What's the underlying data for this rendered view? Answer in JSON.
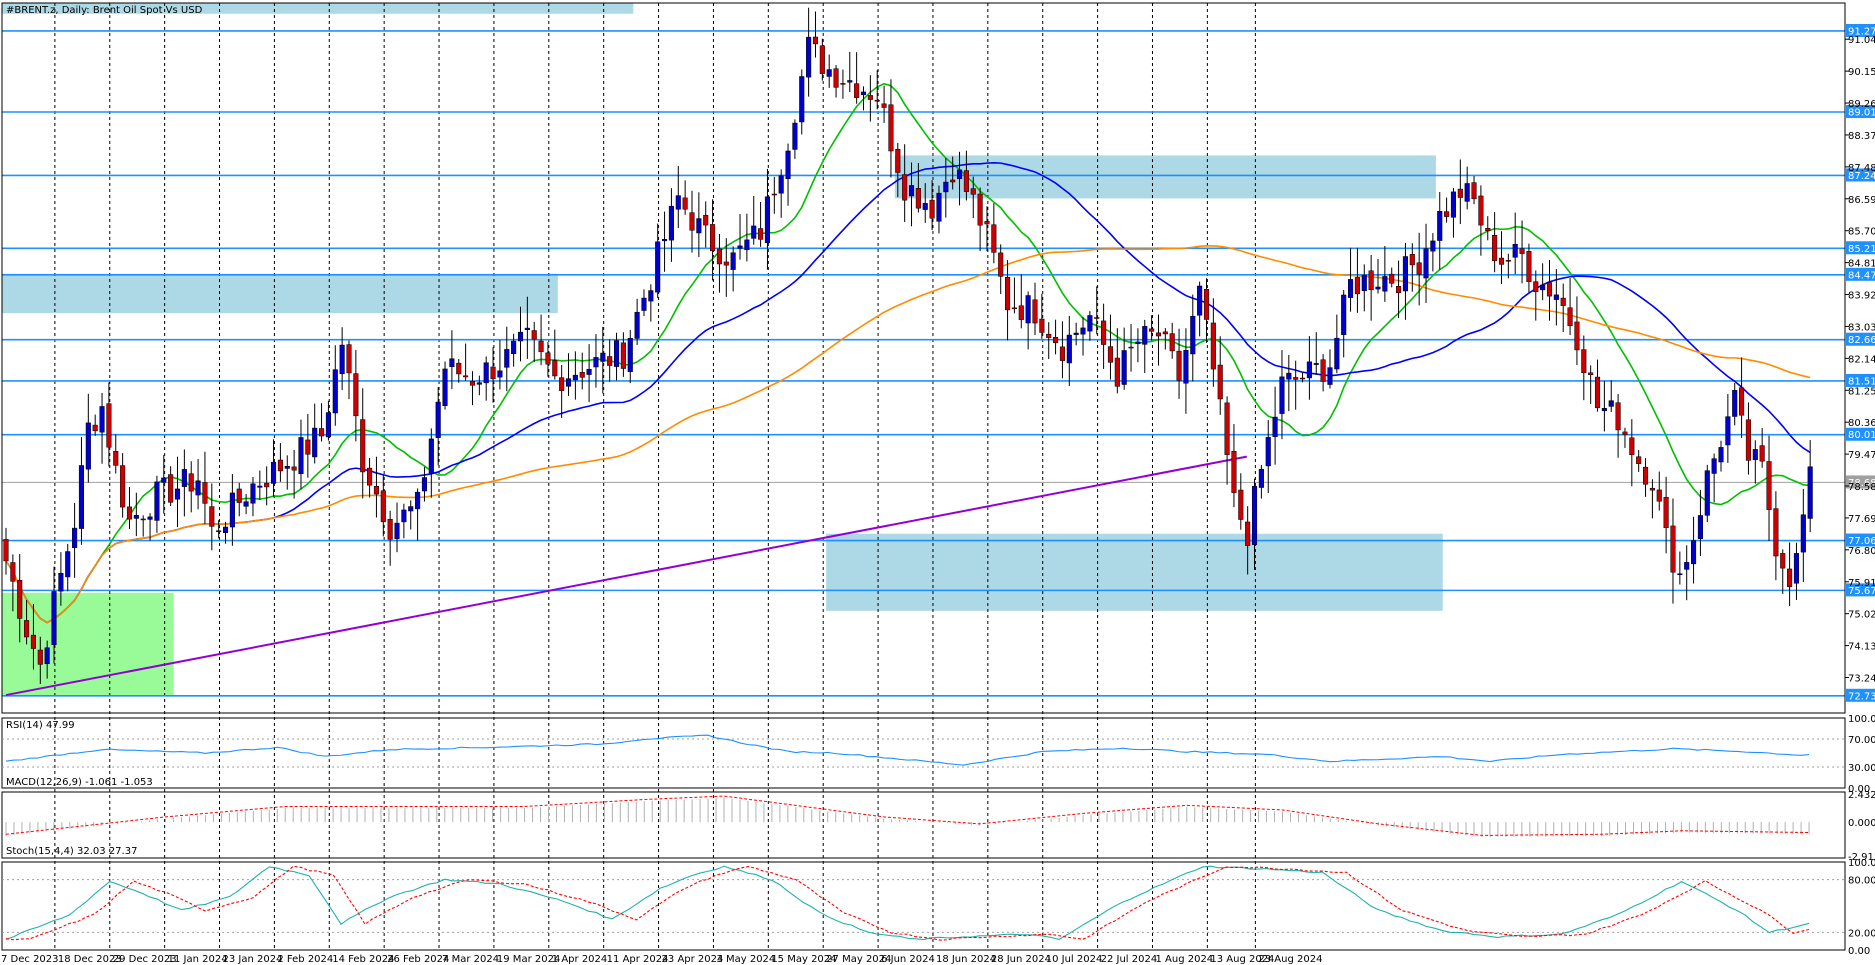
{
  "chart_data": {
    "type": "candlestick",
    "title": "#BRENT.z, Daily:  Brent Oil Spot Vs USD",
    "price_axis": {
      "ylim": [
        72.25,
        92.05
      ],
      "ticks": [
        "91.04",
        "90.15",
        "89.26",
        "88.37",
        "87.48",
        "86.59",
        "85.70",
        "84.81",
        "83.92",
        "83.03",
        "82.14",
        "81.25",
        "80.36",
        "79.47",
        "78.58",
        "77.69",
        "76.80",
        "75.91",
        "75.02",
        "74.13",
        "73.24"
      ]
    },
    "level_lines": [
      {
        "value": "91.27",
        "v": 91.27
      },
      {
        "value": "89.01",
        "v": 89.01
      },
      {
        "value": "87.24",
        "v": 87.24
      },
      {
        "value": "85.21",
        "v": 85.21
      },
      {
        "value": "84.47",
        "v": 84.47
      },
      {
        "value": "82.66",
        "v": 82.66
      },
      {
        "value": "81.51",
        "v": 81.51
      },
      {
        "value": "80.01",
        "v": 80.01
      },
      {
        "value": "77.06",
        "v": 77.06
      },
      {
        "value": "75.67",
        "v": 75.67
      },
      {
        "value": "72.73",
        "v": 72.73
      }
    ],
    "current_price": {
      "value": "78.68",
      "v": 78.68
    },
    "date_labels": [
      "7 Dec 2023",
      "18 Dec 2023",
      "29 Dec 2023",
      "11 Jan 2024",
      "23 Jan 2024",
      "2 Feb 2024",
      "14 Feb 2024",
      "26 Feb 2024",
      "7 Mar 2024",
      "19 Mar 2024",
      "1 Apr 2024",
      "11 Apr 2024",
      "23 Apr 2024",
      "3 May 2024",
      "15 May 2024",
      "27 May 2024",
      "6 Jun 2024",
      "18 Jun 2024",
      "28 Jun 2024",
      "10 Jul 2024",
      "22 Jul 2024",
      "1 Aug 2024",
      "13 Aug 2024",
      "23 Aug 2024"
    ],
    "zones": [
      {
        "name": "supply-zone-top",
        "from_bar": 0,
        "to_bar": 91,
        "price_from": 91.75,
        "price_to": 92.05,
        "color": "#add8e6"
      },
      {
        "name": "supply-zone-june",
        "from_bar": 130,
        "to_bar": 208,
        "price_from": 86.6,
        "price_to": 87.8,
        "color": "#add8e6"
      },
      {
        "name": "zone-march",
        "from_bar": 0,
        "to_bar": 80,
        "price_from": 83.4,
        "price_to": 84.5,
        "color": "#add8e6"
      },
      {
        "name": "demand-zone-aug",
        "from_bar": 120,
        "to_bar": 209,
        "price_from": 75.1,
        "price_to": 77.25,
        "color": "#add8e6"
      },
      {
        "name": "demand-zone-dec",
        "from_bar": 0,
        "to_bar": 24,
        "price_from": 72.75,
        "price_to": 75.6,
        "color": "#98fb98"
      }
    ],
    "trendline": {
      "from": {
        "bar": 0,
        "price": 72.75
      },
      "to": {
        "bar": 180,
        "price": 79.4
      },
      "color": "#9400d3"
    },
    "rsi": {
      "label": "RSI(14) 47.99",
      "ticks": [
        "100.00",
        "70.00",
        "30.00",
        "0.00"
      ],
      "levels": [
        70,
        30
      ],
      "anchors": [
        [
          0,
          38
        ],
        [
          12,
          55
        ],
        [
          25,
          50
        ],
        [
          34,
          58
        ],
        [
          40,
          45
        ],
        [
          48,
          55
        ],
        [
          60,
          58
        ],
        [
          75,
          63
        ],
        [
          80,
          70
        ],
        [
          88,
          75
        ],
        [
          92,
          65
        ],
        [
          98,
          52
        ],
        [
          104,
          50
        ],
        [
          120,
          33
        ],
        [
          130,
          52
        ],
        [
          140,
          57
        ],
        [
          148,
          52
        ],
        [
          158,
          48
        ],
        [
          166,
          38
        ],
        [
          180,
          45
        ],
        [
          186,
          38
        ],
        [
          195,
          48
        ],
        [
          209,
          56
        ],
        [
          218,
          52
        ],
        [
          225,
          47
        ],
        [
          226,
          48
        ]
      ]
    },
    "macd": {
      "label": "MACD(12,26,9) -1.061 -1.053",
      "ticks": [
        "2.432",
        "0.000",
        "-2.915"
      ],
      "anchors": [
        [
          0,
          -1.2
        ],
        [
          8,
          -0.6
        ],
        [
          20,
          0.3
        ],
        [
          35,
          1.2
        ],
        [
          50,
          1.2
        ],
        [
          65,
          1.2
        ],
        [
          80,
          1.8
        ],
        [
          90,
          2.1
        ],
        [
          100,
          1.2
        ],
        [
          110,
          0.3
        ],
        [
          122,
          -0.3
        ],
        [
          135,
          0.6
        ],
        [
          148,
          1.3
        ],
        [
          160,
          0.9
        ],
        [
          172,
          -0.3
        ],
        [
          185,
          -1.3
        ],
        [
          200,
          -1.2
        ],
        [
          210,
          -0.9
        ],
        [
          226,
          -1.05
        ]
      ]
    },
    "stoch": {
      "label": "Stoch(15,4,4) 32.03 27.37",
      "ticks": [
        "100.00",
        "80.00",
        "20.00",
        "0.00"
      ],
      "levels": [
        80,
        20
      ],
      "anchors": [
        [
          0,
          12
        ],
        [
          8,
          40
        ],
        [
          13,
          78
        ],
        [
          17,
          65
        ],
        [
          22,
          45
        ],
        [
          28,
          60
        ],
        [
          33,
          95
        ],
        [
          38,
          85
        ],
        [
          42,
          30
        ],
        [
          48,
          60
        ],
        [
          55,
          80
        ],
        [
          62,
          75
        ],
        [
          70,
          55
        ],
        [
          76,
          35
        ],
        [
          82,
          70
        ],
        [
          86,
          85
        ],
        [
          90,
          95
        ],
        [
          96,
          80
        ],
        [
          102,
          42
        ],
        [
          108,
          20
        ],
        [
          114,
          12
        ],
        [
          120,
          15
        ],
        [
          128,
          18
        ],
        [
          132,
          12
        ],
        [
          140,
          55
        ],
        [
          150,
          95
        ],
        [
          158,
          92
        ],
        [
          165,
          88
        ],
        [
          172,
          45
        ],
        [
          180,
          22
        ],
        [
          187,
          15
        ],
        [
          195,
          18
        ],
        [
          202,
          40
        ],
        [
          210,
          78
        ],
        [
          217,
          45
        ],
        [
          221,
          20
        ],
        [
          226,
          30
        ]
      ]
    },
    "indicator_colors": {
      "ma_fast": "#00c000",
      "ma_mid": "#0000ff",
      "ma_slow": "#ff8c00",
      "bull": "#0000cd",
      "bear": "#cc0000",
      "level": "#1e90ff",
      "rsi": "#1e90ff",
      "macd_signal": "#ff0000",
      "macd_hist": "#b0b0b0",
      "stoch_main": "#20b2aa",
      "stoch_signal": "#ff0000"
    },
    "price_anchors": [
      [
        0,
        76.5
      ],
      [
        3,
        74.6
      ],
      [
        5,
        73.6
      ],
      [
        7,
        75.3
      ],
      [
        10,
        77.6
      ],
      [
        12,
        80.2
      ],
      [
        14,
        80.8
      ],
      [
        16,
        79.0
      ],
      [
        18,
        77.6
      ],
      [
        22,
        78.3
      ],
      [
        28,
        78.8
      ],
      [
        30,
        77.3
      ],
      [
        36,
        78.6
      ],
      [
        42,
        79.4
      ],
      [
        46,
        80.0
      ],
      [
        49,
        82.6
      ],
      [
        52,
        79.3
      ],
      [
        56,
        77.5
      ],
      [
        60,
        78.0
      ],
      [
        64,
        81.9
      ],
      [
        68,
        81.6
      ],
      [
        72,
        82.0
      ],
      [
        76,
        82.6
      ],
      [
        80,
        81.6
      ],
      [
        86,
        82.0
      ],
      [
        90,
        82.3
      ],
      [
        94,
        84.4
      ],
      [
        98,
        86.6
      ],
      [
        102,
        85.5
      ],
      [
        106,
        84.9
      ],
      [
        110,
        85.7
      ],
      [
        114,
        88.3
      ],
      [
        117,
        90.8
      ],
      [
        120,
        90.2
      ],
      [
        124,
        89.8
      ],
      [
        127,
        89.5
      ],
      [
        131,
        87.0
      ],
      [
        135,
        86.4
      ],
      [
        138,
        87.5
      ],
      [
        141,
        86.5
      ],
      [
        143,
        85.5
      ],
      [
        146,
        83.7
      ],
      [
        150,
        83.5
      ],
      [
        154,
        82.5
      ],
      [
        158,
        83.3
      ],
      [
        162,
        81.7
      ],
      [
        165,
        82.6
      ],
      [
        168,
        82.8
      ],
      [
        171,
        81.6
      ],
      [
        174,
        83.9
      ],
      [
        176,
        81.8
      ],
      [
        179,
        78.1
      ],
      [
        181,
        77.3
      ],
      [
        183,
        79.0
      ],
      [
        186,
        81.4
      ],
      [
        190,
        81.7
      ],
      [
        193,
        82.0
      ],
      [
        196,
        84.2
      ],
      [
        200,
        84.4
      ],
      [
        203,
        84.4
      ],
      [
        206,
        84.9
      ],
      [
        209,
        86.1
      ],
      [
        212,
        86.8
      ],
      [
        214,
        86.5
      ],
      [
        216,
        85.4
      ],
      [
        218,
        84.9
      ],
      [
        221,
        85.0
      ],
      [
        223,
        84.3
      ],
      [
        226,
        84.0
      ],
      [
        229,
        82.8
      ],
      [
        232,
        80.8
      ],
      [
        235,
        80.5
      ],
      [
        238,
        79.3
      ],
      [
        240,
        78.8
      ],
      [
        242,
        77.1
      ],
      [
        244,
        76.1
      ],
      [
        246,
        77.2
      ],
      [
        248,
        78.8
      ],
      [
        250,
        79.9
      ],
      [
        252,
        80.9
      ],
      [
        254,
        79.4
      ],
      [
        256,
        79.0
      ],
      [
        258,
        77.0
      ],
      [
        260,
        76.1
      ],
      [
        261,
        76.5
      ],
      [
        262,
        77.7
      ],
      [
        263,
        78.7
      ]
    ]
  }
}
